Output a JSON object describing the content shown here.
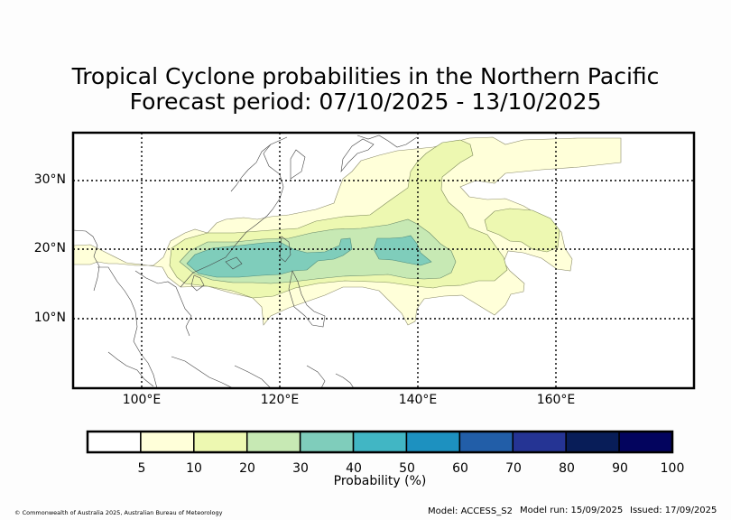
{
  "title_line1": "Tropical Cyclone probabilities in the Northern Pacific",
  "title_line2": "Forecast period: 07/10/2025 - 13/10/2025",
  "map": {
    "latitude_labels": [
      "30°N",
      "20°N",
      "10°N"
    ],
    "longitude_labels": [
      "100°E",
      "120°E",
      "140°E",
      "160°E"
    ]
  },
  "colorbar": {
    "label": "Probability (%)",
    "ticks": [
      "5",
      "10",
      "20",
      "30",
      "40",
      "50",
      "60",
      "70",
      "80",
      "90",
      "100"
    ],
    "colors": [
      "#ffffff",
      "#ffffd9",
      "#edf8b1",
      "#c7e9b4",
      "#7fcdbb",
      "#41b6c4",
      "#1d91c0",
      "#225ea8",
      "#253494",
      "#081d58",
      "#03045e"
    ]
  },
  "footer": {
    "copyright": "© Commonwealth of Australia 2025, Australian Bureau of Meteorology",
    "model": "Model: ACCESS_S2",
    "model_run": "Model run: 15/09/2025",
    "issued": "Issued: 17/09/2025"
  }
}
